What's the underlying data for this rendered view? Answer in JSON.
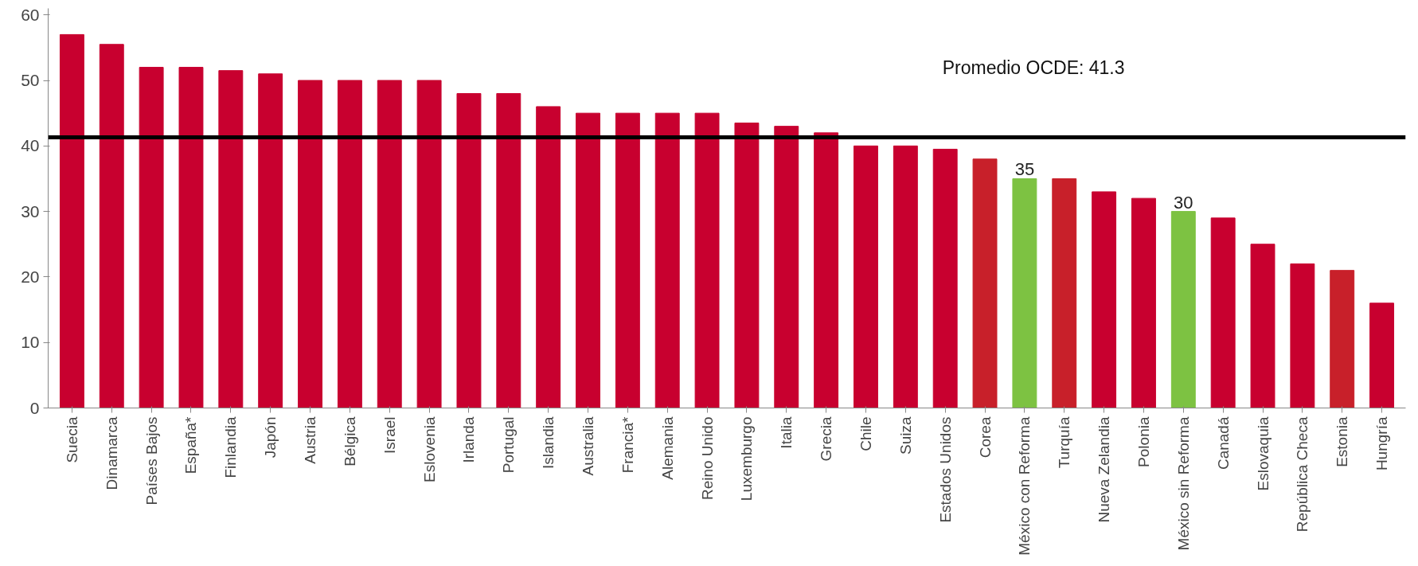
{
  "chart_data": {
    "type": "bar",
    "categories": [
      "Suecia",
      "Dinamarca",
      "Países Bajos",
      "España*",
      "Finlandia",
      "Japón",
      "Austria",
      "Bélgica",
      "Israel",
      "Eslovenia",
      "Irlanda",
      "Portugal",
      "Islandia",
      "Australia",
      "Francia*",
      "Alemania",
      "Reino Unido",
      "Luxemburgo",
      "Italia",
      "Grecia",
      "Chile",
      "Suiza",
      "Estados Unidos",
      "Corea",
      "México con Reforma",
      "Turquía",
      "Nueva Zelandia",
      "Polonia",
      "México sin Reforma",
      "Canadá",
      "Eslovaquia",
      "República Checa",
      "Estonia",
      "Hungría"
    ],
    "values": [
      57,
      55.5,
      52,
      52,
      51.5,
      51,
      50,
      50,
      50,
      50,
      48,
      48,
      46,
      45,
      45,
      45,
      45,
      43.5,
      43,
      42,
      40,
      40,
      39.5,
      38,
      35,
      35,
      33,
      32,
      30,
      29,
      25,
      22,
      21,
      16
    ],
    "colors": [
      "#c8002f",
      "#c8002f",
      "#c8002f",
      "#c8002f",
      "#c8002f",
      "#c8002f",
      "#c8002f",
      "#c8002f",
      "#c8002f",
      "#c8002f",
      "#c8002f",
      "#c8002f",
      "#c8002f",
      "#c8002f",
      "#c8002f",
      "#c8002f",
      "#c8002f",
      "#c8002f",
      "#c8002f",
      "#c8002f",
      "#c8002f",
      "#c8002f",
      "#c8002f",
      "#c8202a",
      "#7dc242",
      "#c8202a",
      "#c8002f",
      "#c8002f",
      "#7dc242",
      "#c8002f",
      "#c8002f",
      "#c8002f",
      "#c8202a",
      "#c8002f"
    ],
    "value_labels": [
      null,
      null,
      null,
      null,
      null,
      null,
      null,
      null,
      null,
      null,
      null,
      null,
      null,
      null,
      null,
      null,
      null,
      null,
      null,
      null,
      null,
      null,
      null,
      null,
      "35",
      null,
      null,
      null,
      "30",
      null,
      null,
      null,
      null,
      null
    ],
    "ylim": [
      0,
      61
    ],
    "yticks": [
      0,
      10,
      20,
      30,
      40,
      50,
      60
    ],
    "ref_lines": [
      {
        "axis": "y",
        "value": 41.3,
        "label": "Promedio OCDE: 41.3",
        "color": "#000000"
      }
    ]
  }
}
